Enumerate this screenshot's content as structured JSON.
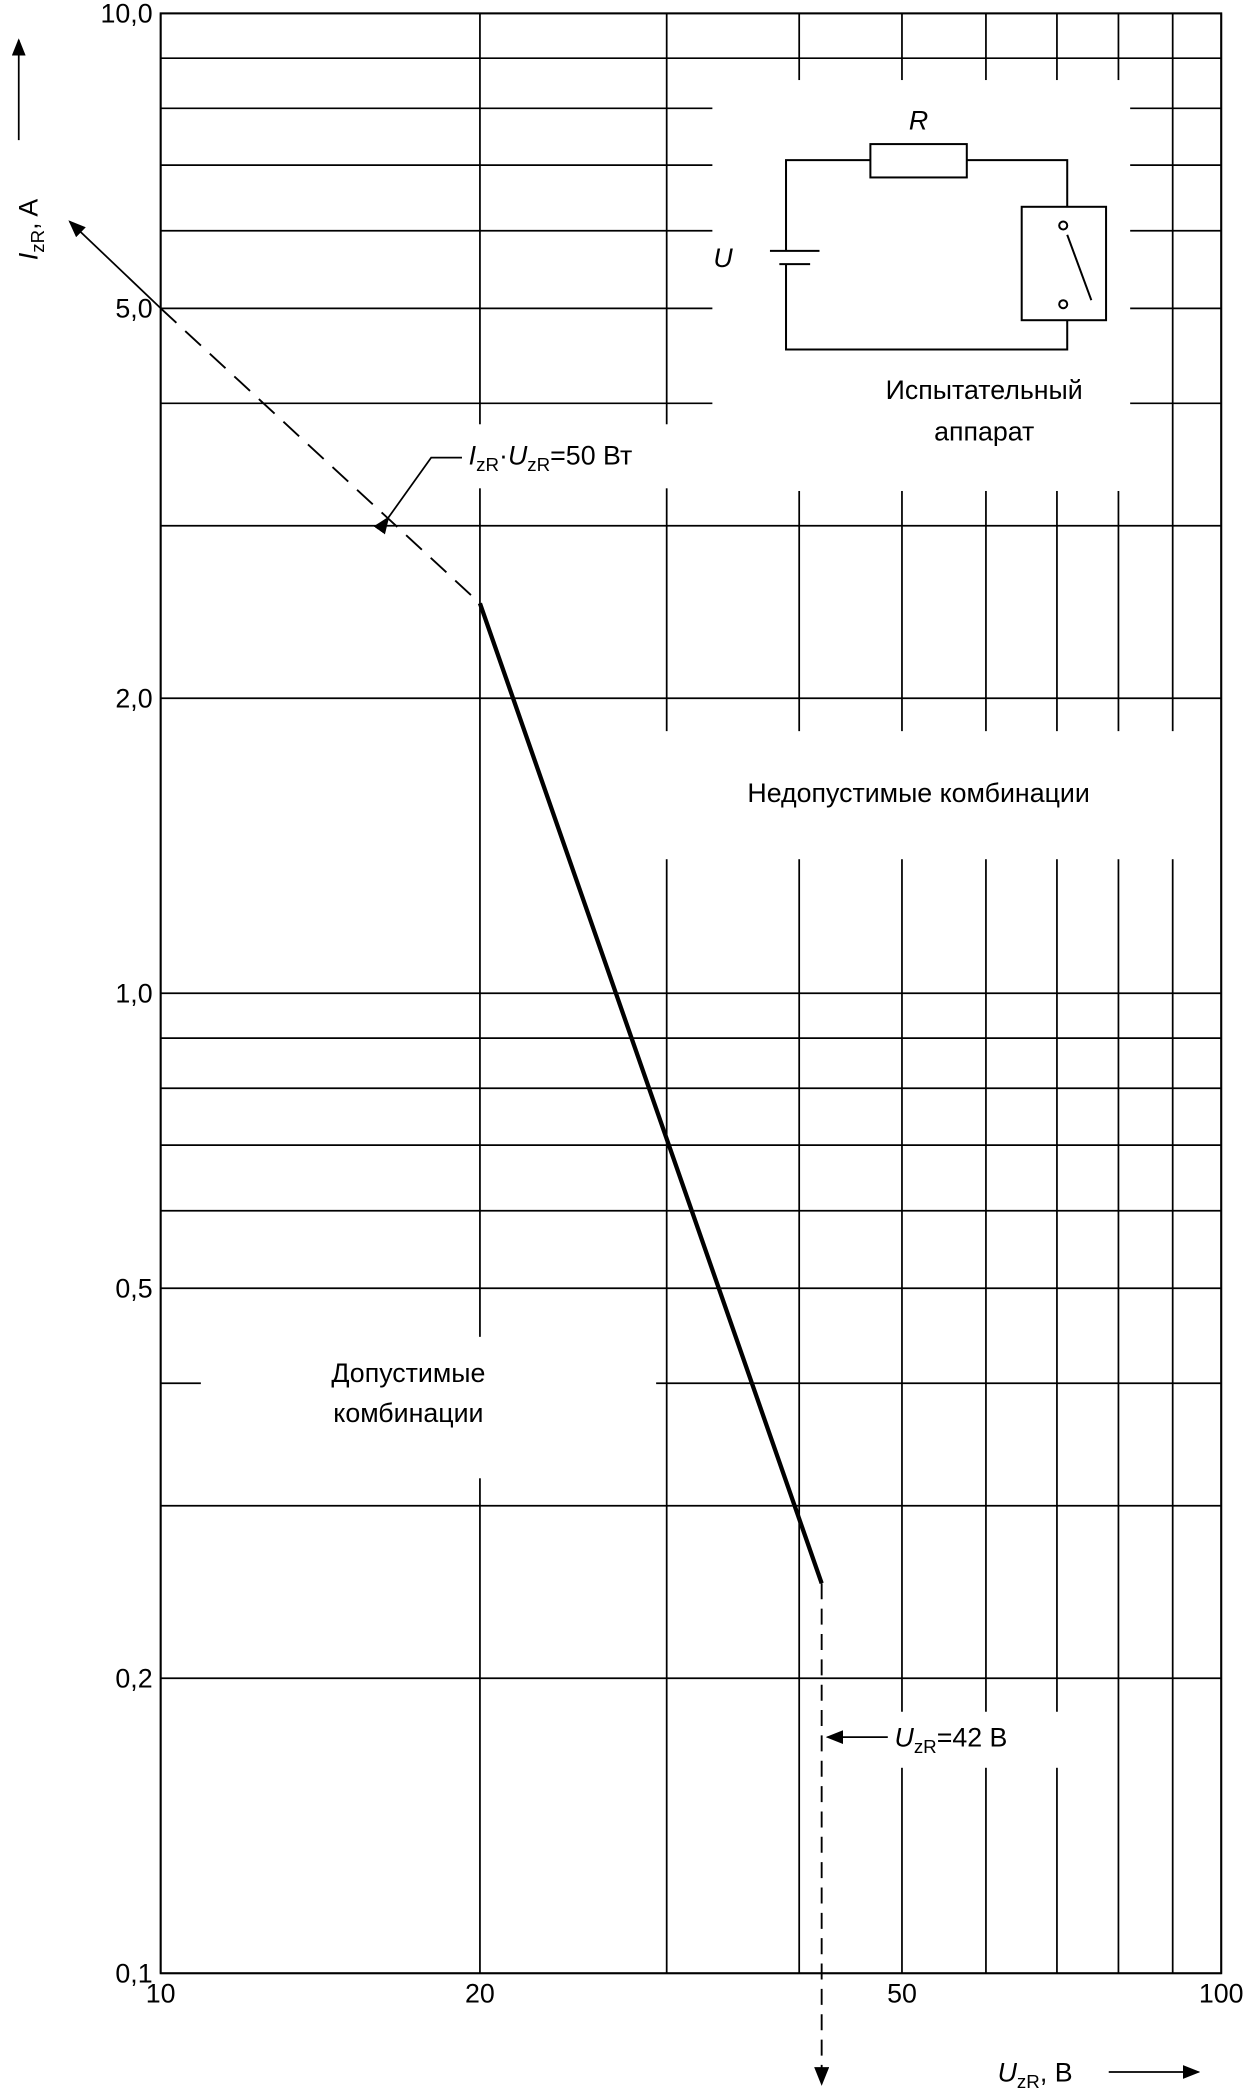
{
  "chart_data": {
    "type": "line",
    "x_label": [
      "U",
      "zR",
      ", В"
    ],
    "y_label": [
      "I",
      "zR",
      ", A"
    ],
    "xscale": "log",
    "yscale": "log",
    "xlim": [
      10,
      100
    ],
    "ylim": [
      0.1,
      10
    ],
    "xticks": [
      10,
      20,
      50,
      100
    ],
    "yticks": [
      {
        "value": 0.1,
        "label": "0,1"
      },
      {
        "value": 0.2,
        "label": "0,2"
      },
      {
        "value": 0.5,
        "label": "0,5"
      },
      {
        "value": 1,
        "label": "1,0"
      },
      {
        "value": 2,
        "label": "2,0"
      },
      {
        "value": 5,
        "label": "5,0"
      },
      {
        "value": 10,
        "label": "10,0"
      }
    ],
    "xgrid": [
      30,
      40,
      60,
      70,
      80,
      90
    ],
    "ygrid": [
      0.3,
      0.4,
      0.6,
      0.7,
      0.8,
      0.9,
      3,
      4,
      6,
      7,
      8,
      9
    ],
    "grid": true,
    "series": [
      {
        "color": "#000000",
        "style": "dashed",
        "x": [
          10,
          20
        ],
        "values": [
          5,
          2.5
        ]
      },
      {
        "color": "#000000",
        "style": "solid",
        "x": [
          20,
          42
        ],
        "values": [
          2.5,
          0.25
        ]
      }
    ],
    "vline": {
      "x": 42,
      "from": 0.25,
      "style": "dashed"
    },
    "power_label": [
      "I",
      "zR",
      "·",
      "U",
      "zR",
      "=50 Вт"
    ],
    "voltage_label": [
      "U",
      "zR",
      "=42 В"
    ],
    "regions": {
      "forbidden": "Недопустимые комбинации",
      "allowed": [
        "Допустимые",
        "комбинации"
      ]
    },
    "inset": {
      "resistor": "R",
      "source": "U",
      "caption": [
        "Испытательный",
        "аппарат"
      ]
    }
  }
}
